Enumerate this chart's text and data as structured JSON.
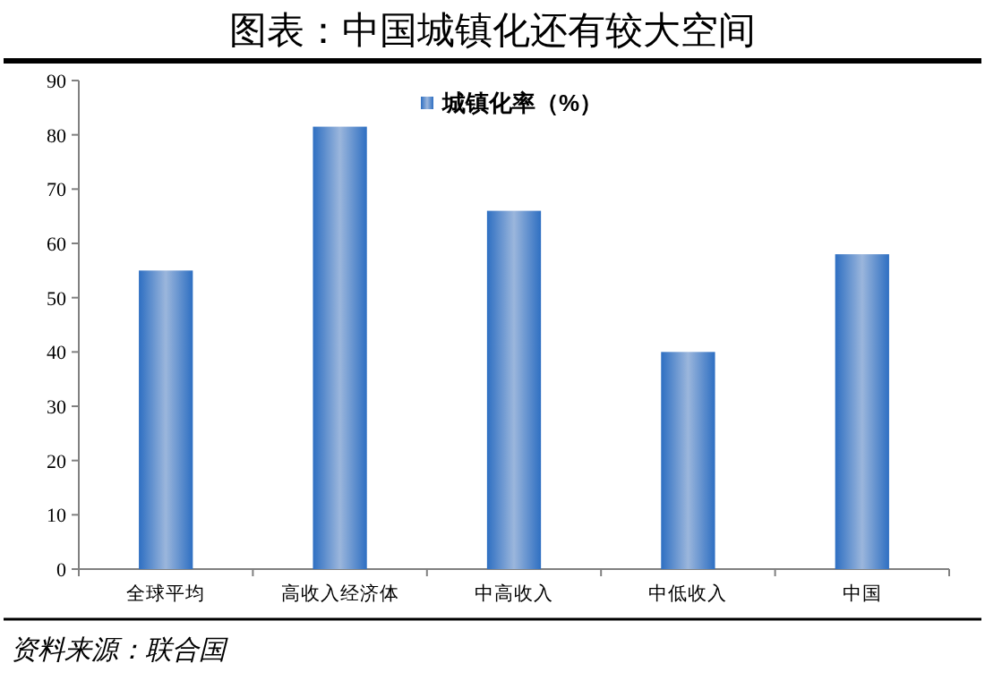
{
  "chart_data": {
    "type": "bar",
    "title": "图表：中国城镇化还有较大空间",
    "categories": [
      "全球平均",
      "高收入经济体",
      "中高收入",
      "中低收入",
      "中国"
    ],
    "series": [
      {
        "name": "城镇化率（%）",
        "color": "#2e6fc2",
        "values": [
          55,
          81.5,
          66,
          40,
          58
        ]
      }
    ],
    "ylim": [
      0,
      90
    ],
    "yticks": [
      0,
      10,
      20,
      30,
      40,
      50,
      60,
      70,
      80,
      90
    ],
    "grid": false,
    "legend": "top",
    "annotations": [
      "资料来源：联合国"
    ]
  }
}
